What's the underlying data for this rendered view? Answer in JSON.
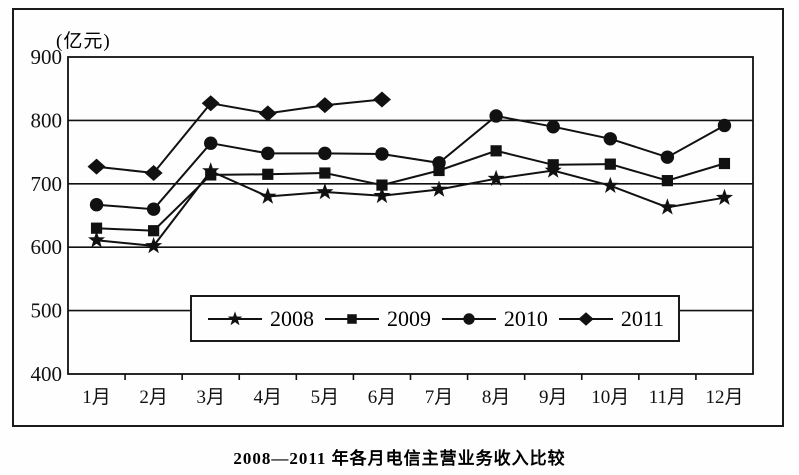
{
  "chart_data": {
    "type": "line",
    "title": "2008—2011 年各月电信主营业务收入比较",
    "xlabel": "",
    "ylabel": "(亿元)",
    "ylim": [
      400,
      900
    ],
    "y_ticks": [
      400,
      500,
      600,
      700,
      800,
      900
    ],
    "grid": true,
    "legend_position": "inside-bottom",
    "categories": [
      "1月",
      "2月",
      "3月",
      "4月",
      "5月",
      "6月",
      "7月",
      "8月",
      "9月",
      "10月",
      "11月",
      "12月"
    ],
    "series": [
      {
        "name": "2008",
        "marker": "star",
        "values": [
          611,
          602,
          720,
          680,
          687,
          681,
          691,
          708,
          721,
          697,
          663,
          678
        ]
      },
      {
        "name": "2009",
        "marker": "square",
        "values": [
          630,
          626,
          714,
          715,
          717,
          698,
          721,
          752,
          730,
          731,
          705,
          732
        ]
      },
      {
        "name": "2010",
        "marker": "circle",
        "values": [
          667,
          660,
          764,
          748,
          748,
          747,
          733,
          807,
          790,
          771,
          742,
          792
        ]
      },
      {
        "name": "2011",
        "marker": "diamond",
        "values": [
          727,
          717,
          827,
          811,
          824,
          833,
          null,
          null,
          null,
          null,
          null,
          null
        ]
      }
    ]
  },
  "colors": {
    "line": "#111111",
    "frame": "#1a1a1a",
    "background": "#fefefe"
  }
}
